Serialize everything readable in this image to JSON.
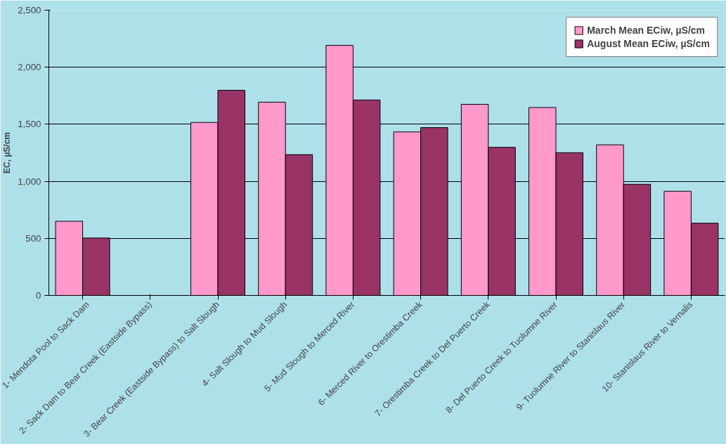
{
  "chart_data": {
    "type": "bar",
    "ylabel": "EC, µS/cm",
    "categories": [
      "1- Mendota Pool to Sack Dam",
      "2- Sack Dam to Bear Creek (Eastside Bypass)",
      "3- Bear Creek (Eastside Bypass) to Salt Slough",
      "4- Salt Slough to Mud Slough",
      "5- Mud Slough to Merced River",
      "6- Merced River to Orestimba Creek",
      "7- Orestimba Creek to Del Puerto Creek",
      "8- Del Puerto Creek to Tuolumne River",
      "9- Tuolumne River to Stanislaus River",
      "10- Stanislaus River to Vernalis"
    ],
    "series": [
      {
        "name": "March Mean ECiw, µS/cm",
        "color": "#ff99cc",
        "values": [
          650,
          null,
          1516,
          1694,
          2192,
          1433,
          1675,
          1647,
          1320,
          913
        ]
      },
      {
        "name": "August Mean ECiw, µS/cm",
        "color": "#993366",
        "values": [
          503,
          null,
          1798,
          1234,
          1713,
          1471,
          1298,
          1251,
          974,
          633
        ]
      }
    ],
    "ylim": [
      0,
      2500
    ],
    "yticks": [
      0,
      {
        "value": 500,
        "label": "500"
      },
      {
        "value": 1000,
        "label": "1,000"
      },
      {
        "value": 1500,
        "label": "1,500"
      },
      {
        "value": 2000,
        "label": "2,000"
      },
      {
        "value": 2500,
        "label": "2,500"
      }
    ],
    "grid": "y",
    "legend": "top right"
  }
}
